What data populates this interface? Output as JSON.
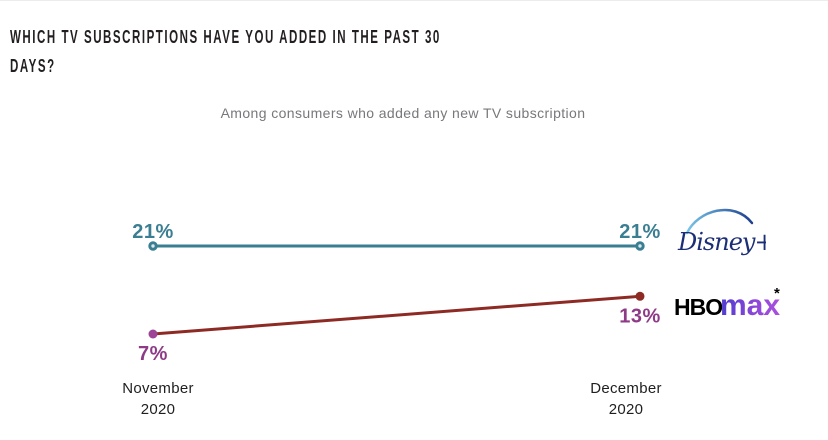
{
  "header": {
    "title_lines": [
      "WHICH TV SUBSCRIPTIONS HAVE YOU ADDED IN THE PAST 30",
      "DAYS?"
    ],
    "subtitle": "Among consumers who added any new TV subscription"
  },
  "chart_data": {
    "type": "line",
    "categories": [
      "November 2020",
      "December 2020"
    ],
    "categories_lines": [
      [
        "November",
        "2020"
      ],
      [
        "December",
        "2020"
      ]
    ],
    "value_unit": "%",
    "grid": false,
    "legend_position": "right",
    "series": [
      {
        "name": "Disney+",
        "values": [
          21,
          21
        ],
        "labels": [
          "21%",
          "21%"
        ],
        "label_position": "above",
        "line_color": "#3a7e92",
        "label_color": "#3a7e92",
        "marker_colors": [
          "#3a7e92",
          "#3a7e92"
        ],
        "marker_style": "ring"
      },
      {
        "name": "HBO Max*",
        "values": [
          7,
          13
        ],
        "labels": [
          "7%",
          "13%"
        ],
        "label_position": "below",
        "line_color": "#8e2a24",
        "label_color": "#8e3b87",
        "marker_colors": [
          "#9c4496",
          "#8e2a24"
        ],
        "marker_style": "solid"
      }
    ]
  },
  "legend": {
    "disney": {
      "label": "Disney+"
    },
    "hbomax": {
      "hbo": "HBO",
      "max": "max",
      "asterisk": "*"
    }
  },
  "colors": {
    "title": "#231f20",
    "subtitle_gray": "#77787b",
    "teal": "#3a7e92",
    "dark_red": "#8e2a24",
    "purple_label": "#8e3b87",
    "magenta_marker": "#9c4496",
    "disney_navy": "#1c2f76",
    "disney_arc_start": "#79c6e8",
    "disney_arc_end": "#1d3f90",
    "hbo_black": "#000000",
    "max_gradient_start": "#4f3cd0",
    "max_gradient_end": "#ab50de"
  }
}
